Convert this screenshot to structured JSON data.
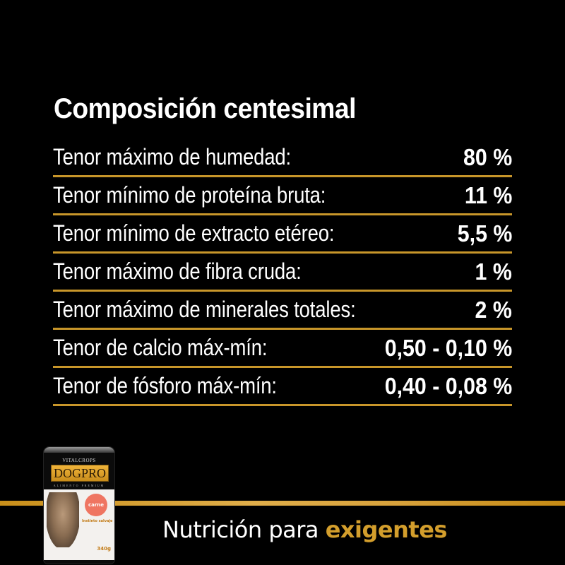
{
  "title": "Composición centesimal",
  "rows": [
    {
      "label": "Tenor máximo de humedad:",
      "value": "80 %"
    },
    {
      "label": "Tenor mínimo de proteína bruta:",
      "value": "11 %"
    },
    {
      "label": "Tenor mínimo de extracto etéreo:",
      "value": "5,5 %"
    },
    {
      "label": "Tenor máximo de fibra cruda:",
      "value": "1 %"
    },
    {
      "label": "Tenor máximo de minerales totales:",
      "value": "2 %"
    },
    {
      "label": "Tenor de calcio máx-mín:",
      "value": "0,50 - 0,10 %"
    },
    {
      "label": "Tenor de fósforo máx-mín:",
      "value": "0,40 - 0,08 %"
    }
  ],
  "tagline": {
    "prefix": "Nutrición para ",
    "accent": "exigentes"
  },
  "product": {
    "maker": "VITALCROPS",
    "brand": "DOGPRO",
    "subtitle": "ALIMENTO PREMIUM",
    "badge": "carne",
    "line": "Instinto salvaje",
    "weight": "340g"
  },
  "colors": {
    "background": "#000000",
    "gold": "#c8962a",
    "accent_text": "#d39e2c",
    "text": "#ffffff"
  }
}
